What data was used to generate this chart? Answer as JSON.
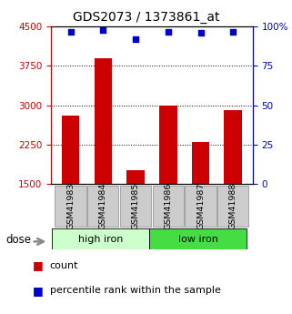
{
  "title": "GDS2073 / 1373861_at",
  "categories": [
    "GSM41983",
    "GSM41984",
    "GSM41985",
    "GSM41986",
    "GSM41987",
    "GSM41988"
  ],
  "bar_values": [
    2800,
    3900,
    1750,
    3000,
    2300,
    2900
  ],
  "dot_values": [
    97,
    98,
    92,
    97,
    96,
    97
  ],
  "bar_color": "#cc0000",
  "dot_color": "#0000cc",
  "ylim_left": [
    1500,
    4500
  ],
  "ylim_right": [
    0,
    100
  ],
  "yticks_left": [
    1500,
    2250,
    3000,
    3750,
    4500
  ],
  "yticks_right": [
    0,
    25,
    50,
    75,
    100
  ],
  "ytick_labels_right": [
    "0",
    "25",
    "50",
    "75",
    "100%"
  ],
  "dotted_lines": [
    2250,
    3000,
    3750
  ],
  "group1_label": "high iron",
  "group2_label": "low iron",
  "group1_color": "#ccffcc",
  "group2_color": "#44dd44",
  "dose_label": "dose",
  "legend_count": "count",
  "legend_percentile": "percentile rank within the sample",
  "bar_color_hex": "#cc0000",
  "dot_color_hex": "#0000cc",
  "background_color": "#ffffff",
  "tick_box_color": "#cccccc",
  "tick_box_edge": "#999999"
}
